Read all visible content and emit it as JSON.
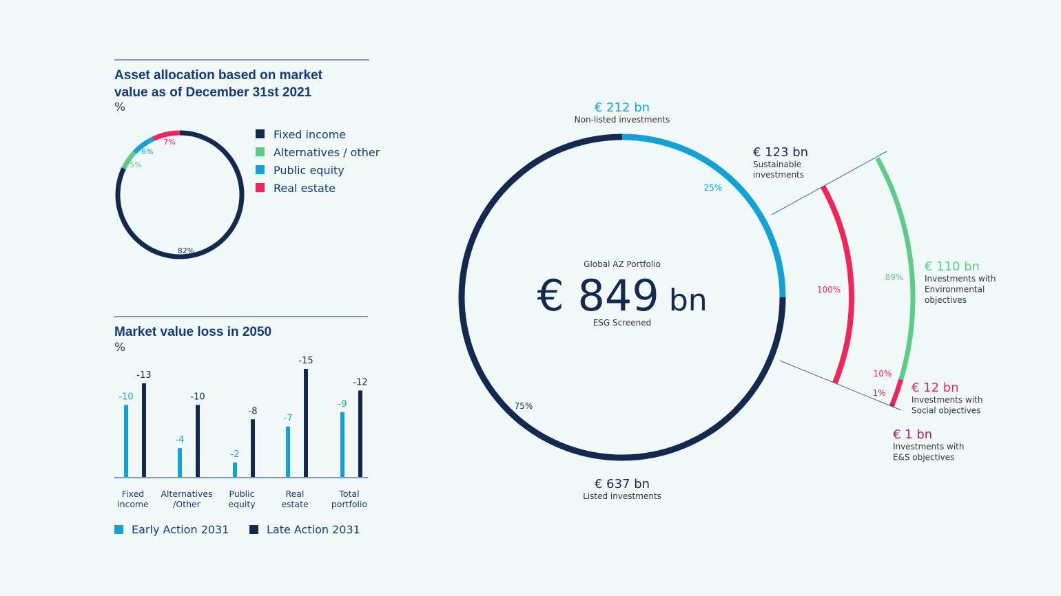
{
  "colors": {
    "navy": "#13294f",
    "blue": "#14a1d4",
    "green": "#5ecb88",
    "red": "#f2245a",
    "purple": "#a3236d",
    "title": "#123a7a",
    "background": "#f1f8f8"
  },
  "chart_data": [
    {
      "type": "pie",
      "variant": "donut",
      "title": "Asset allocation based on market value as of December 31st 2021",
      "unit": "%",
      "legend_position": "right",
      "slices": [
        {
          "name": "Fixed income",
          "value": 82,
          "label": "82%",
          "color": "#13294f"
        },
        {
          "name": "Alternatives / other",
          "value": 5,
          "label": "5%",
          "color": "#5ecb88"
        },
        {
          "name": "Public equity",
          "value": 6,
          "label": "6%",
          "color": "#14a1d4"
        },
        {
          "name": "Real estate",
          "value": 7,
          "label": "7%",
          "color": "#f2245a"
        }
      ]
    },
    {
      "type": "bar",
      "title": "Market value loss in 2050",
      "unit": "%",
      "categories": [
        "Fixed income",
        "Alternatives /Other",
        "Public equity",
        "Real estate",
        "Total portfolio"
      ],
      "series": [
        {
          "name": "Early Action 2031",
          "values": [
            -10,
            -4,
            -2,
            -7,
            -9
          ],
          "color": "#14a1d4"
        },
        {
          "name": "Late Action 2031",
          "values": [
            -13,
            -10,
            -8,
            -15,
            -12
          ],
          "color": "#13294f"
        }
      ],
      "ylim": [
        -15,
        0
      ],
      "legend_position": "bottom",
      "grid": false
    },
    {
      "type": "pie",
      "variant": "donut-with-breakdown-arcs",
      "center_top": "Global AZ Portfolio",
      "center_value": "€ 849",
      "center_unit": "bn",
      "center_bottom": "ESG Screened",
      "slices": [
        {
          "value_label": "€ 212 bn",
          "name": "Non-listed investments",
          "percent": 25,
          "label": "25%",
          "color": "#14a1d4"
        },
        {
          "value_label": "€ 637 bn",
          "name": "Listed investments",
          "percent": 75,
          "label": "75%",
          "color": "#13294f"
        }
      ],
      "sustainable": {
        "value_label": "€ 123 bn",
        "name_line1": "Sustainable",
        "name_line2": "investments",
        "percent": 100,
        "label": "100%",
        "color": "#f2245a"
      },
      "breakdown": [
        {
          "value_label": "€ 110 bn",
          "lines": [
            "Investments with",
            "Environmental",
            "objectives"
          ],
          "percent": 89,
          "label": "89%",
          "color": "#5ecb88"
        },
        {
          "value_label": "€ 12 bn",
          "lines": [
            "Investments with",
            "Social objectives"
          ],
          "percent": 10,
          "label": "10%",
          "color": "#f2245a"
        },
        {
          "value_label": "€ 1 bn",
          "lines": [
            "Investments with",
            "E&S objectives"
          ],
          "percent": 1,
          "label": "1%",
          "color": "#a3236d"
        }
      ]
    }
  ]
}
